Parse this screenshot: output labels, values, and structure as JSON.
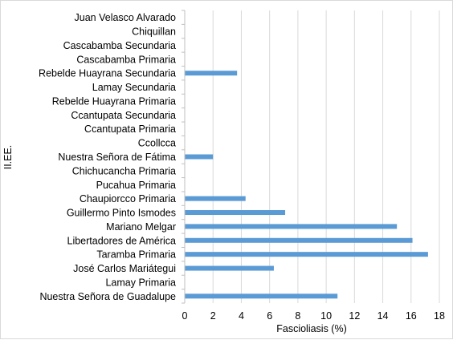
{
  "chart_data": {
    "type": "bar",
    "orientation": "horizontal",
    "categories": [
      "Juan Velasco Alvarado",
      "Chiquillan",
      "Cascabamba Secundaria",
      "Cascabamba Primaria",
      "Rebelde Huayrana Secundaria",
      "Lamay Secundaria",
      "Rebelde Huayrana Primaria",
      "Ccantupata Secundaria",
      "Ccantupata Primaria",
      "Ccollcca",
      "Nuestra Señora de Fátima",
      "Chichucancha Primaria",
      "Pucahua Primaria",
      "Chaupiorcco Primaria",
      "Guillermo Pinto Ismodes",
      "Mariano Melgar",
      "Libertadores de América",
      "Taramba Primaria",
      "José Carlos Mariátegui",
      "Lamay Primaria",
      "Nuestra Señora de Guadalupe"
    ],
    "values": [
      0,
      0,
      0,
      0,
      3.7,
      0,
      0,
      0,
      0,
      0,
      2.0,
      0,
      0,
      4.3,
      7.1,
      15.0,
      16.1,
      17.2,
      6.3,
      0,
      10.8
    ],
    "xlabel": "Fascioliasis (%)",
    "ylabel": "II.EE.",
    "xlim": [
      0,
      18
    ],
    "xticks": [
      "0",
      "2",
      "4",
      "6",
      "8",
      "10",
      "12",
      "14",
      "16",
      "18"
    ],
    "grid": true,
    "bar_color": "#5b9bd5",
    "grid_color": "#d9d9d9",
    "axis_color": "#bfbfbf"
  }
}
